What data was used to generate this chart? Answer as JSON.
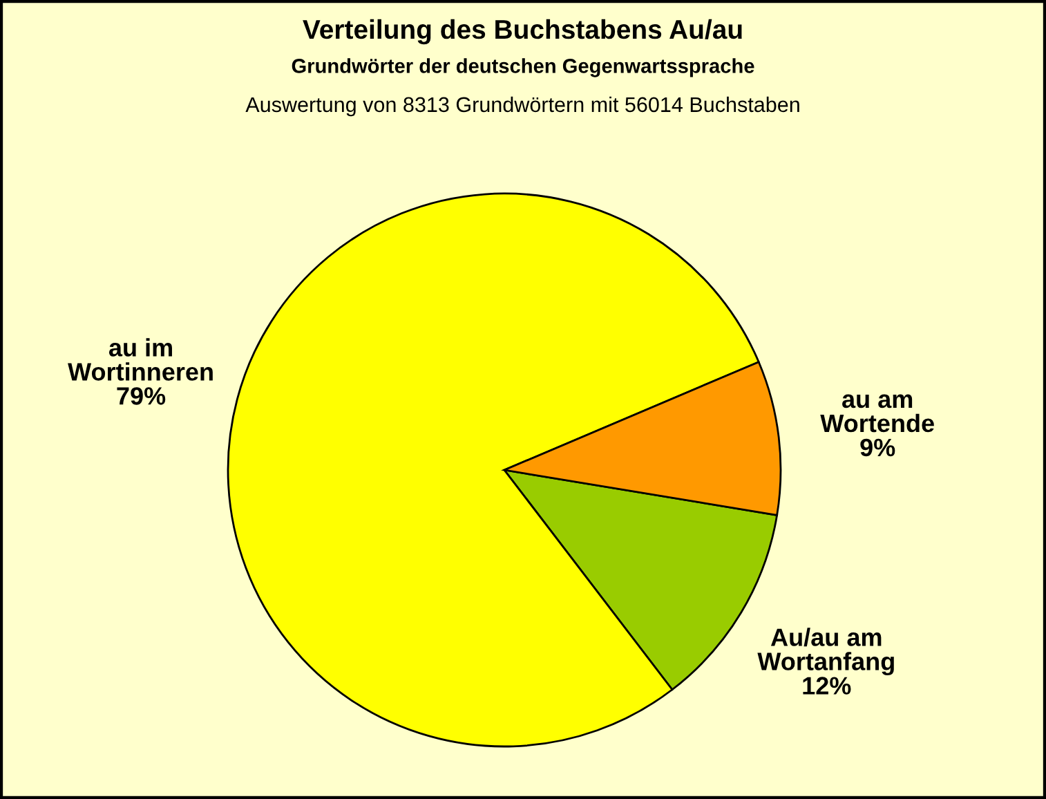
{
  "chart_data": {
    "type": "pie",
    "title": "Verteilung des Buchstabens Au/au",
    "subtitle": "Grundwörter der deutschen Gegenwartssprache",
    "annotations": [
      "Auswertung von 8313 Grundwörtern mit 56014 Buchstaben"
    ],
    "categories": [
      "Au/au am Wortanfang",
      "au im Wortinneren",
      "au am Wortende"
    ],
    "values": [
      12,
      79,
      9
    ],
    "colors": [
      "#99cc00",
      "#ffff00",
      "#ff9900"
    ],
    "value_labels": [
      "12%",
      "79%",
      "9%"
    ],
    "legend": false
  }
}
